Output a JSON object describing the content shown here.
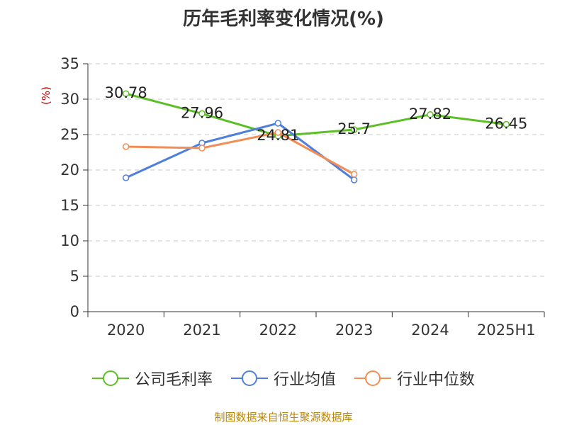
{
  "chart_data": {
    "type": "line",
    "title": "历年毛利率变化情况(%)",
    "ylabel": "(%)",
    "xlabel": "",
    "categories": [
      "2020",
      "2021",
      "2022",
      "2023",
      "2024",
      "2025H1"
    ],
    "ylim": [
      0,
      35
    ],
    "yticks": [
      0,
      5,
      10,
      15,
      20,
      25,
      30,
      35
    ],
    "grid": true,
    "legend_position": "bottom",
    "series": [
      {
        "name": "公司毛利率",
        "color": "#5cbf26",
        "values": [
          30.78,
          27.96,
          24.81,
          25.7,
          27.82,
          26.45
        ],
        "labels": [
          "30.78",
          "27.96",
          "24.81",
          "25.7",
          "27.82",
          "26.45"
        ]
      },
      {
        "name": "行业均值",
        "color": "#4f7fdc",
        "values": [
          18.9,
          23.8,
          26.6,
          18.6,
          null,
          null
        ]
      },
      {
        "name": "行业中位数",
        "color": "#f28d55",
        "values": [
          23.3,
          23.1,
          25.3,
          19.4,
          null,
          null
        ]
      }
    ]
  },
  "source": "制图数据来自恒生聚源数据库"
}
